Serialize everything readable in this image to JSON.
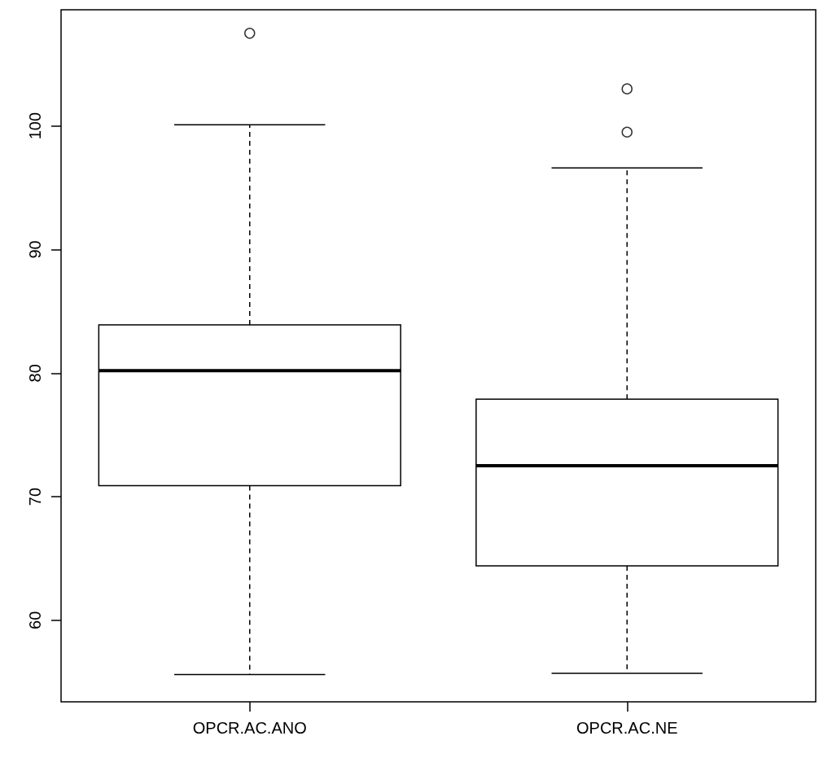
{
  "chart_data": {
    "type": "box",
    "categories": [
      "OPCR.AC.ANO",
      "OPCR.AC.NE"
    ],
    "boxes": [
      {
        "low": 55.6,
        "q1": 70.9,
        "median": 80.2,
        "q3": 83.9,
        "high": 100.1,
        "outliers": [
          107.5
        ]
      },
      {
        "low": 55.7,
        "q1": 64.4,
        "median": 72.5,
        "q3": 77.9,
        "high": 96.6,
        "outliers": [
          103.0,
          99.5
        ]
      }
    ],
    "ylim": [
      53.4,
      109.4
    ],
    "yticks": [
      60,
      70,
      80,
      90,
      100
    ],
    "grid": false
  }
}
